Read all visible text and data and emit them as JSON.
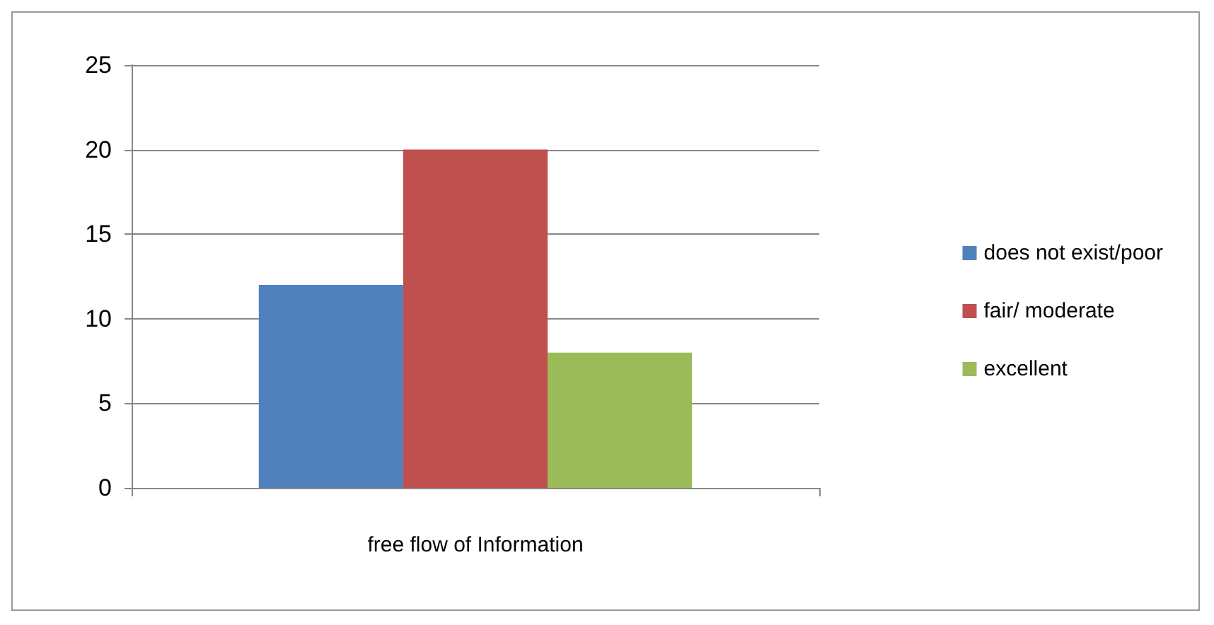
{
  "chart_data": {
    "type": "bar",
    "categories": [
      "free flow of Information"
    ],
    "series": [
      {
        "name": "does not exist/poor",
        "color": "#4f81bd",
        "values": [
          12
        ]
      },
      {
        "name": "fair/ moderate",
        "color": "#c0504d",
        "values": [
          20
        ]
      },
      {
        "name": "excellent",
        "color": "#9bbb59",
        "values": [
          8
        ]
      }
    ],
    "ylim": [
      0,
      25
    ],
    "yticks": [
      0,
      5,
      10,
      15,
      20,
      25
    ],
    "grid": "y",
    "legend": "right"
  }
}
